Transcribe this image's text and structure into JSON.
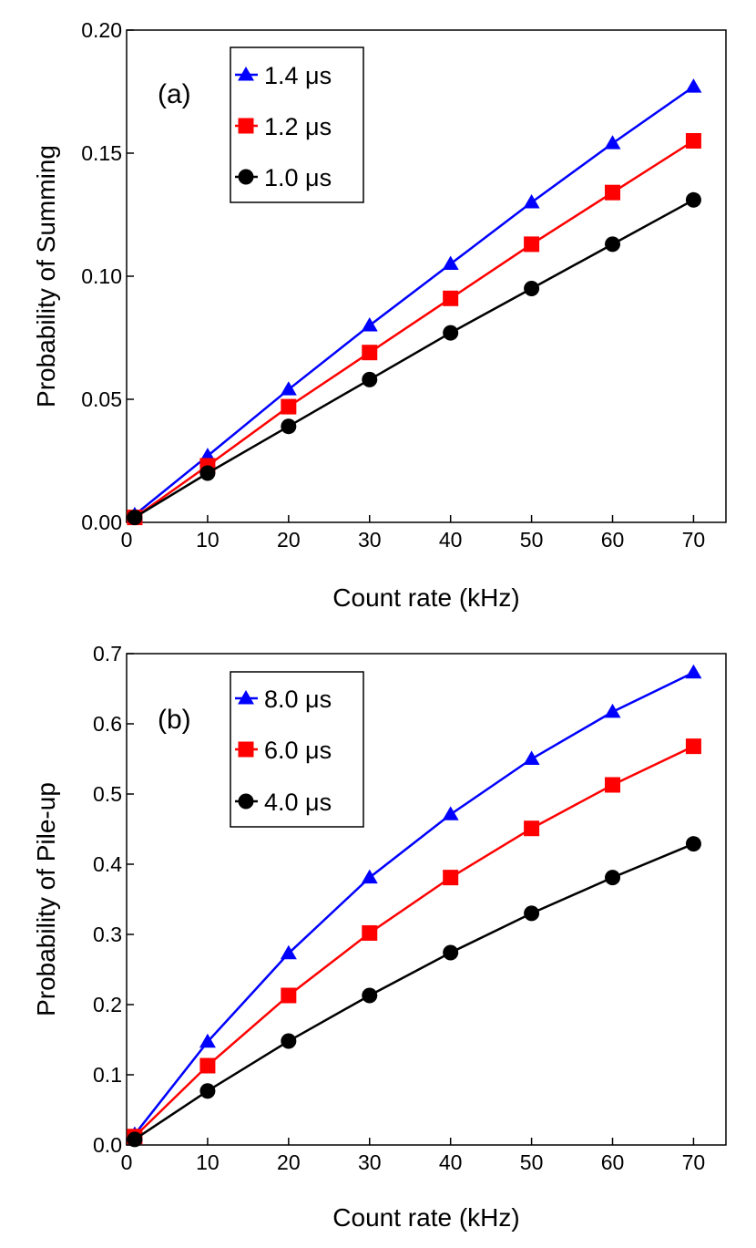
{
  "chart_data": [
    {
      "type": "line",
      "panel_label": "(a)",
      "xlabel": "Count rate (kHz)",
      "ylabel": "Probability of Summing",
      "xlim": [
        0,
        74
      ],
      "ylim": [
        0,
        0.2
      ],
      "xticks": [
        0,
        10,
        20,
        30,
        40,
        50,
        60,
        70
      ],
      "xtick_labels": [
        "0",
        "10",
        "20",
        "30",
        "40",
        "50",
        "60",
        "70"
      ],
      "yticks": [
        0,
        0.05,
        0.1,
        0.15,
        0.2
      ],
      "ytick_labels": [
        "0.00",
        "0.05",
        "0.10",
        "0.15",
        "0.20"
      ],
      "legend_position": "top-left",
      "x": [
        1,
        10,
        20,
        30,
        40,
        50,
        60,
        70
      ],
      "series": [
        {
          "name": "1.4 μs",
          "color": "#0000ff",
          "marker": "triangle",
          "values": [
            0.003,
            0.027,
            0.054,
            0.08,
            0.105,
            0.13,
            0.154,
            0.177
          ]
        },
        {
          "name": "1.2 μs",
          "color": "#ff0000",
          "marker": "square",
          "values": [
            0.002,
            0.023,
            0.047,
            0.069,
            0.091,
            0.113,
            0.134,
            0.155
          ]
        },
        {
          "name": "1.0 μs",
          "color": "#000000",
          "marker": "circle",
          "values": [
            0.002,
            0.02,
            0.039,
            0.058,
            0.077,
            0.095,
            0.113,
            0.131
          ]
        }
      ]
    },
    {
      "type": "line",
      "panel_label": "(b)",
      "xlabel": "Count rate (kHz)",
      "ylabel": "Probability of Pile-up",
      "xlim": [
        0,
        74
      ],
      "ylim": [
        0,
        0.7
      ],
      "xticks": [
        0,
        10,
        20,
        30,
        40,
        50,
        60,
        70
      ],
      "xtick_labels": [
        "0",
        "10",
        "20",
        "30",
        "40",
        "50",
        "60",
        "70"
      ],
      "yticks": [
        0,
        0.1,
        0.2,
        0.3,
        0.4,
        0.5,
        0.6,
        0.7
      ],
      "ytick_labels": [
        "0.0",
        "0.1",
        "0.2",
        "0.3",
        "0.4",
        "0.5",
        "0.6",
        "0.7"
      ],
      "legend_position": "top-left",
      "x": [
        1,
        10,
        20,
        30,
        40,
        50,
        60,
        70
      ],
      "series": [
        {
          "name": "8.0 μs",
          "color": "#0000ff",
          "marker": "triangle",
          "values": [
            0.015,
            0.147,
            0.273,
            0.381,
            0.471,
            0.55,
            0.617,
            0.673
          ]
        },
        {
          "name": "6.0 μs",
          "color": "#ff0000",
          "marker": "square",
          "values": [
            0.012,
            0.113,
            0.213,
            0.302,
            0.381,
            0.451,
            0.513,
            0.568
          ]
        },
        {
          "name": "4.0 μs",
          "color": "#000000",
          "marker": "circle",
          "values": [
            0.008,
            0.077,
            0.148,
            0.213,
            0.274,
            0.33,
            0.381,
            0.429
          ]
        }
      ]
    }
  ]
}
